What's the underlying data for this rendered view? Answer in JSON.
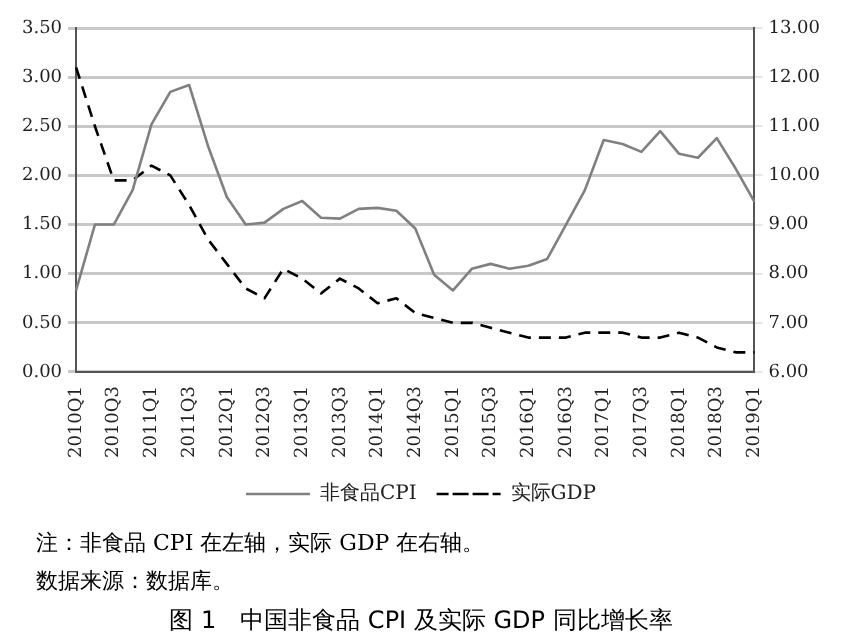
{
  "chart_data": {
    "type": "line",
    "title": "图 1　中国非食品 CPI 及实际 GDP 同比增长率",
    "categories": [
      "2010Q1",
      null,
      "2010Q3",
      null,
      "2011Q1",
      null,
      "2011Q3",
      null,
      "2012Q1",
      null,
      "2012Q3",
      null,
      "2013Q1",
      null,
      "2013Q3",
      null,
      "2014Q1",
      null,
      "2014Q3",
      null,
      "2015Q1",
      null,
      "2015Q3",
      null,
      "2016Q1",
      null,
      "2016Q3",
      null,
      "2017Q1",
      null,
      "2017Q3",
      null,
      "2018Q1",
      null,
      "2018Q3",
      null,
      "2019Q1"
    ],
    "series": [
      {
        "name": "非食品CPI",
        "color": "#808080",
        "line_style": "solid",
        "values": [
          0.83,
          1.5,
          1.5,
          1.85,
          2.52,
          2.85,
          2.92,
          2.3,
          1.78,
          1.5,
          1.52,
          1.66,
          1.74,
          1.57,
          1.56,
          1.66,
          1.67,
          1.64,
          1.46,
          0.99,
          0.83,
          1.05,
          1.1,
          1.05,
          1.08,
          1.15,
          1.5,
          1.85,
          2.36,
          2.32,
          2.24,
          2.45,
          2.22,
          2.18,
          2.38,
          2.07,
          1.73
        ]
      },
      {
        "name": "实际GDP",
        "color": "#000000",
        "line_style": "dashed",
        "axis": "y2",
        "values": [
          12.2,
          11.0,
          9.9,
          9.9,
          10.2,
          10.0,
          9.4,
          8.7,
          8.2,
          7.7,
          7.5,
          8.1,
          7.9,
          7.6,
          7.9,
          7.7,
          7.4,
          7.5,
          7.2,
          7.1,
          7.0,
          7.0,
          6.9,
          6.8,
          6.7,
          6.7,
          6.7,
          6.8,
          6.8,
          6.8,
          6.7,
          6.7,
          6.8,
          6.7,
          6.5,
          6.4,
          6.4
        ]
      }
    ],
    "ylim": [
      0,
      3.5
    ],
    "yticks": [
      {
        "value": 0,
        "label": "0.00"
      },
      {
        "value": 0.5,
        "label": "0.50"
      },
      {
        "value": 1,
        "label": "1.00"
      },
      {
        "value": 1.5,
        "label": "1.50"
      },
      {
        "value": 2,
        "label": "2.00"
      },
      {
        "value": 2.5,
        "label": "2.50"
      },
      {
        "value": 3,
        "label": "3.00"
      },
      {
        "value": 3.5,
        "label": "3.50"
      }
    ],
    "y2lim": [
      6,
      13
    ],
    "y2ticks": [
      {
        "value": 6,
        "label": "6.00"
      },
      {
        "value": 7,
        "label": "7.00"
      },
      {
        "value": 8,
        "label": "8.00"
      },
      {
        "value": 9,
        "label": "9.00"
      },
      {
        "value": 10,
        "label": "10.00"
      },
      {
        "value": 11,
        "label": "11.00"
      },
      {
        "value": 12,
        "label": "12.00"
      },
      {
        "value": 13,
        "label": "13.00"
      }
    ],
    "grid": "y",
    "legend": "bottom",
    "marker": "none",
    "annotations": [
      "注：非食品 CPI 在左轴，实际 GDP 在右轴。",
      "数据来源：数据库。"
    ]
  }
}
